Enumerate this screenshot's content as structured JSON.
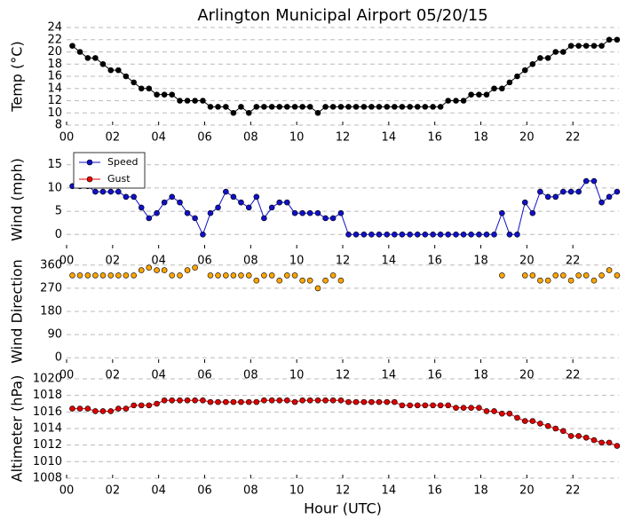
{
  "chart_data": [
    {
      "type": "line",
      "title": "Arlington Municipal Airport 05/20/15",
      "ylabel": "Temp (°C)",
      "x": [
        0.25,
        0.58,
        0.92,
        1.25,
        1.58,
        1.92,
        2.25,
        2.58,
        2.92,
        3.25,
        3.58,
        3.92,
        4.25,
        4.58,
        4.92,
        5.25,
        5.58,
        5.92,
        6.25,
        6.58,
        6.92,
        7.25,
        7.58,
        7.92,
        8.25,
        8.58,
        8.92,
        9.25,
        9.58,
        9.92,
        10.25,
        10.58,
        10.92,
        11.25,
        11.58,
        11.92,
        12.25,
        12.58,
        12.92,
        13.25,
        13.58,
        13.92,
        14.25,
        14.58,
        14.92,
        15.25,
        15.58,
        15.92,
        16.25,
        16.58,
        16.92,
        17.25,
        17.58,
        17.92,
        18.25,
        18.58,
        18.92,
        19.25,
        19.58,
        19.92,
        20.25,
        20.58,
        20.92,
        21.25,
        21.58,
        21.92,
        22.25,
        22.58,
        22.92,
        23.25,
        23.58,
        23.92
      ],
      "series": [
        {
          "name": "Temp",
          "color": "#000000",
          "values": [
            21,
            20,
            19,
            19,
            18,
            17,
            17,
            16,
            15,
            14,
            14,
            13,
            13,
            13,
            12,
            12,
            12,
            12,
            11,
            11,
            11,
            10,
            11,
            10,
            11,
            11,
            11,
            11,
            11,
            11,
            11,
            11,
            10,
            11,
            11,
            11,
            11,
            11,
            11,
            11,
            11,
            11,
            11,
            11,
            11,
            11,
            11,
            11,
            11,
            12,
            12,
            12,
            13,
            13,
            13,
            14,
            14,
            15,
            16,
            17,
            18,
            19,
            19,
            20,
            20,
            21,
            21,
            21,
            21,
            21,
            22,
            22
          ]
        }
      ],
      "xlim": [
        0,
        24
      ],
      "xticks": [
        {
          "value": 0,
          "label": "00"
        },
        {
          "value": 2,
          "label": "02"
        },
        {
          "value": 4,
          "label": "04"
        },
        {
          "value": 6,
          "label": "06"
        },
        {
          "value": 8,
          "label": "08"
        },
        {
          "value": 10,
          "label": "10"
        },
        {
          "value": 12,
          "label": "12"
        },
        {
          "value": 14,
          "label": "14"
        },
        {
          "value": 16,
          "label": "16"
        },
        {
          "value": 18,
          "label": "18"
        },
        {
          "value": 20,
          "label": "20"
        },
        {
          "value": 22,
          "label": "22"
        }
      ],
      "ylim": [
        8,
        24
      ],
      "yticks": [
        8,
        10,
        12,
        14,
        16,
        18,
        20,
        22,
        24
      ],
      "grid": true
    },
    {
      "type": "line",
      "ylabel": "Wind (mph)",
      "legend": "upper left",
      "x": [
        0.25,
        0.58,
        0.92,
        1.25,
        1.58,
        1.92,
        2.25,
        2.58,
        2.92,
        3.25,
        3.58,
        3.92,
        4.25,
        4.58,
        4.92,
        5.25,
        5.58,
        5.92,
        6.25,
        6.58,
        6.92,
        7.25,
        7.58,
        7.92,
        8.25,
        8.58,
        8.92,
        9.25,
        9.58,
        9.92,
        10.25,
        10.58,
        10.92,
        11.25,
        11.58,
        11.92,
        12.25,
        12.58,
        12.92,
        13.25,
        13.58,
        13.92,
        14.25,
        14.58,
        14.92,
        15.25,
        15.58,
        15.92,
        16.25,
        16.58,
        16.92,
        17.25,
        17.58,
        17.92,
        18.25,
        18.58,
        18.92,
        19.25,
        19.58,
        19.92,
        20.25,
        20.58,
        20.92,
        21.25,
        21.58,
        21.92,
        22.25,
        22.58,
        22.92,
        23.25,
        23.58,
        23.92
      ],
      "series": [
        {
          "name": "Speed",
          "color": "#1010c8",
          "values": [
            10.4,
            10.4,
            10.4,
            9.2,
            9.2,
            9.2,
            9.2,
            8.1,
            8.1,
            5.8,
            3.5,
            4.6,
            6.9,
            8.1,
            6.9,
            4.6,
            3.5,
            0,
            4.6,
            5.8,
            9.2,
            8.1,
            6.9,
            5.8,
            8.1,
            3.5,
            5.8,
            6.9,
            6.9,
            4.6,
            4.6,
            4.6,
            4.6,
            3.5,
            3.5,
            4.6,
            0,
            0,
            0,
            0,
            0,
            0,
            0,
            0,
            0,
            0,
            0,
            0,
            0,
            0,
            0,
            0,
            0,
            0,
            0,
            0,
            4.6,
            0,
            0,
            6.9,
            4.6,
            9.2,
            8.1,
            8.1,
            9.2,
            9.2,
            9.2,
            11.5,
            11.5,
            6.9,
            8.1,
            9.2
          ]
        },
        {
          "name": "Gust",
          "color": "#ee0000",
          "values": [
            null,
            null,
            null,
            null,
            null,
            null,
            null,
            null,
            null,
            null,
            null,
            null,
            null,
            null,
            null,
            null,
            null,
            null,
            null,
            null,
            null,
            null,
            null,
            null,
            null,
            null,
            null,
            null,
            null,
            null,
            null,
            null,
            null,
            null,
            null,
            null,
            null,
            null,
            null,
            null,
            null,
            null,
            null,
            null,
            null,
            null,
            null,
            null,
            null,
            null,
            null,
            null,
            null,
            null,
            null,
            null,
            null,
            null,
            null,
            null,
            null,
            null,
            null,
            null,
            null,
            null,
            null,
            null,
            null,
            null,
            null,
            null
          ]
        }
      ],
      "xlim": [
        0,
        24
      ],
      "xticks": [
        {
          "value": 0,
          "label": "00"
        },
        {
          "value": 2,
          "label": "02"
        },
        {
          "value": 4,
          "label": "04"
        },
        {
          "value": 6,
          "label": "06"
        },
        {
          "value": 8,
          "label": "08"
        },
        {
          "value": 10,
          "label": "10"
        },
        {
          "value": 12,
          "label": "12"
        },
        {
          "value": 14,
          "label": "14"
        },
        {
          "value": 16,
          "label": "16"
        },
        {
          "value": 18,
          "label": "18"
        },
        {
          "value": 20,
          "label": "20"
        },
        {
          "value": 22,
          "label": "22"
        }
      ],
      "ylim": [
        -3,
        18
      ],
      "yticks": [
        0,
        5,
        10,
        15
      ],
      "grid": true
    },
    {
      "type": "scatter",
      "ylabel": "Wind Direction",
      "x": [
        0.25,
        0.58,
        0.92,
        1.25,
        1.58,
        1.92,
        2.25,
        2.58,
        2.92,
        3.25,
        3.58,
        3.92,
        4.25,
        4.58,
        4.92,
        5.25,
        5.58,
        5.92,
        6.25,
        6.58,
        6.92,
        7.25,
        7.58,
        7.92,
        8.25,
        8.58,
        8.92,
        9.25,
        9.58,
        9.92,
        10.25,
        10.58,
        10.92,
        11.25,
        11.58,
        11.92,
        12.25,
        12.58,
        12.92,
        13.25,
        13.58,
        13.92,
        14.25,
        14.58,
        14.92,
        15.25,
        15.58,
        15.92,
        16.25,
        16.58,
        16.92,
        17.25,
        17.58,
        17.92,
        18.25,
        18.58,
        18.92,
        19.25,
        19.58,
        19.92,
        20.25,
        20.58,
        20.92,
        21.25,
        21.58,
        21.92,
        22.25,
        22.58,
        22.92,
        23.25,
        23.58,
        23.92
      ],
      "series": [
        {
          "name": "Direction",
          "color": "#ffa500",
          "values": [
            320,
            320,
            320,
            320,
            320,
            320,
            320,
            320,
            320,
            340,
            350,
            340,
            340,
            320,
            320,
            340,
            350,
            null,
            320,
            320,
            320,
            320,
            320,
            320,
            300,
            320,
            320,
            300,
            320,
            320,
            300,
            300,
            270,
            300,
            320,
            300,
            null,
            null,
            null,
            null,
            null,
            null,
            null,
            null,
            null,
            null,
            null,
            null,
            null,
            null,
            null,
            null,
            null,
            null,
            null,
            null,
            320,
            null,
            null,
            320,
            320,
            300,
            300,
            320,
            320,
            300,
            320,
            320,
            300,
            320,
            340,
            320
          ]
        }
      ],
      "xlim": [
        0,
        24
      ],
      "xticks": [
        {
          "value": 0,
          "label": "00"
        },
        {
          "value": 2,
          "label": "02"
        },
        {
          "value": 4,
          "label": "04"
        },
        {
          "value": 6,
          "label": "06"
        },
        {
          "value": 8,
          "label": "08"
        },
        {
          "value": 10,
          "label": "10"
        },
        {
          "value": 12,
          "label": "12"
        },
        {
          "value": 14,
          "label": "14"
        },
        {
          "value": 16,
          "label": "16"
        },
        {
          "value": 18,
          "label": "18"
        },
        {
          "value": 20,
          "label": "20"
        },
        {
          "value": 22,
          "label": "22"
        }
      ],
      "ylim": [
        -20,
        380
      ],
      "yticks": [
        0,
        90,
        180,
        270,
        360
      ],
      "grid": true
    },
    {
      "type": "line",
      "ylabel": "Altimeter (hPa)",
      "xlabel": "Hour (UTC)",
      "x": [
        0.25,
        0.58,
        0.92,
        1.25,
        1.58,
        1.92,
        2.25,
        2.58,
        2.92,
        3.25,
        3.58,
        3.92,
        4.25,
        4.58,
        4.92,
        5.25,
        5.58,
        5.92,
        6.25,
        6.58,
        6.92,
        7.25,
        7.58,
        7.92,
        8.25,
        8.58,
        8.92,
        9.25,
        9.58,
        9.92,
        10.25,
        10.58,
        10.92,
        11.25,
        11.58,
        11.92,
        12.25,
        12.58,
        12.92,
        13.25,
        13.58,
        13.92,
        14.25,
        14.58,
        14.92,
        15.25,
        15.58,
        15.92,
        16.25,
        16.58,
        16.92,
        17.25,
        17.58,
        17.92,
        18.25,
        18.58,
        18.92,
        19.25,
        19.58,
        19.92,
        20.25,
        20.58,
        20.92,
        21.25,
        21.58,
        21.92,
        22.25,
        22.58,
        22.92,
        23.25,
        23.58,
        23.92
      ],
      "series": [
        {
          "name": "Altimeter",
          "color": "#dd0000",
          "values": [
            1016.4,
            1016.4,
            1016.4,
            1016.1,
            1016.1,
            1016.1,
            1016.4,
            1016.4,
            1016.8,
            1016.8,
            1016.8,
            1017.0,
            1017.4,
            1017.4,
            1017.4,
            1017.4,
            1017.4,
            1017.4,
            1017.2,
            1017.2,
            1017.2,
            1017.2,
            1017.2,
            1017.2,
            1017.2,
            1017.4,
            1017.4,
            1017.4,
            1017.4,
            1017.2,
            1017.4,
            1017.4,
            1017.4,
            1017.4,
            1017.4,
            1017.4,
            1017.2,
            1017.2,
            1017.2,
            1017.2,
            1017.2,
            1017.2,
            1017.2,
            1016.8,
            1016.8,
            1016.8,
            1016.8,
            1016.8,
            1016.8,
            1016.8,
            1016.5,
            1016.5,
            1016.5,
            1016.5,
            1016.1,
            1016.1,
            1015.8,
            1015.8,
            1015.3,
            1014.9,
            1014.9,
            1014.6,
            1014.3,
            1014.0,
            1013.7,
            1013.1,
            1013.1,
            1012.9,
            1012.6,
            1012.3,
            1012.3,
            1011.9
          ]
        }
      ],
      "xlim": [
        0,
        24
      ],
      "xticks": [
        {
          "value": 0,
          "label": "00"
        },
        {
          "value": 2,
          "label": "02"
        },
        {
          "value": 4,
          "label": "04"
        },
        {
          "value": 6,
          "label": "06"
        },
        {
          "value": 8,
          "label": "08"
        },
        {
          "value": 10,
          "label": "10"
        },
        {
          "value": 12,
          "label": "12"
        },
        {
          "value": 14,
          "label": "14"
        },
        {
          "value": 16,
          "label": "16"
        },
        {
          "value": 18,
          "label": "18"
        },
        {
          "value": 20,
          "label": "20"
        },
        {
          "value": 22,
          "label": "22"
        }
      ],
      "ylim": [
        1008,
        1020
      ],
      "yticks": [
        1008,
        1010,
        1012,
        1014,
        1016,
        1018,
        1020
      ],
      "grid": true
    }
  ]
}
